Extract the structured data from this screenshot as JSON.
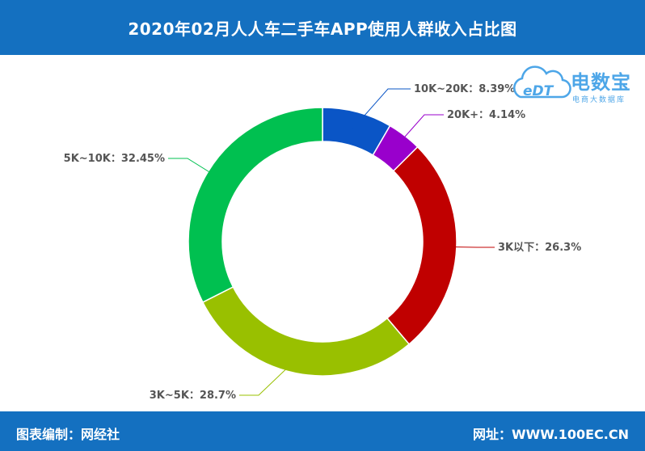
{
  "header": {
    "title": "2020年02月人人车二手车APP使用人群收入占比图"
  },
  "footer": {
    "left": "图表编制：网经社",
    "right": "网址：WWW.100EC.CN"
  },
  "logo": {
    "badge": "eDT",
    "main": "电数宝",
    "sub": "电商大数据库"
  },
  "colors": {
    "bar": "#1470c0",
    "logo": "#4da6e8"
  },
  "chart_data": {
    "type": "pie",
    "style": "donut",
    "title": "2020年02月人人车二手车APP使用人群收入占比图",
    "slices": [
      {
        "label": "10K~20K：8.39%",
        "category": "10K~20K",
        "value": 8.39,
        "color": "#0a55c6"
      },
      {
        "label": "20K+：4.14%",
        "category": "20K+",
        "value": 4.14,
        "color": "#9900cc"
      },
      {
        "label": "3K以下：26.3%",
        "category": "3K以下",
        "value": 26.3,
        "color": "#c00000"
      },
      {
        "label": "3K~5K：28.7%",
        "category": "3K~5K",
        "value": 28.7,
        "color": "#99c000"
      },
      {
        "label": "5K~10K：32.45%",
        "category": "5K~10K",
        "value": 32.45,
        "color": "#00c050"
      }
    ]
  }
}
